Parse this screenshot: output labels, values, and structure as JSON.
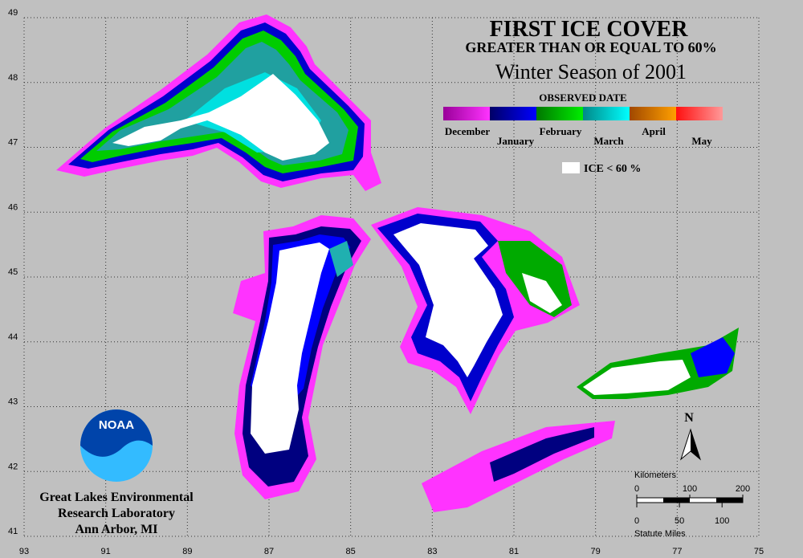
{
  "header": {
    "title": "FIRST ICE COVER",
    "subtitle": "GREATER THAN OR EQUAL TO 60%",
    "season": "Winter Season of 2001"
  },
  "legend": {
    "title": "OBSERVED DATE",
    "entries": [
      {
        "label": "December",
        "colors": [
          "#990099",
          "#ff33ff"
        ]
      },
      {
        "label": "January",
        "colors": [
          "#000066",
          "#0000ff"
        ]
      },
      {
        "label": "February",
        "colors": [
          "#007700",
          "#00ee00"
        ]
      },
      {
        "label": "March",
        "colors": [
          "#008888",
          "#00ffff"
        ]
      },
      {
        "label": "April",
        "colors": [
          "#a04800",
          "#ffa000"
        ]
      },
      {
        "label": "May",
        "colors": [
          "#ff1010",
          "#ff9999"
        ]
      }
    ],
    "no_ice": {
      "label": "ICE < 60 %",
      "color": "#ffffff"
    }
  },
  "grid": {
    "latitudes": [
      49,
      48,
      47,
      46,
      45,
      44,
      43,
      42,
      41
    ],
    "longitudes": [
      93,
      91,
      89,
      87,
      85,
      83,
      81,
      79,
      77,
      75
    ]
  },
  "scale_bar": {
    "km_title": "Kilometers",
    "km_ticks": [
      0,
      100,
      200
    ],
    "mile_ticks": [
      0,
      50,
      100
    ],
    "mile_title": "Statute Miles"
  },
  "north": "N",
  "logo": "NOAA",
  "credit": [
    "Great Lakes Environmental",
    "Research Laboratory",
    "Ann Arbor, MI"
  ]
}
